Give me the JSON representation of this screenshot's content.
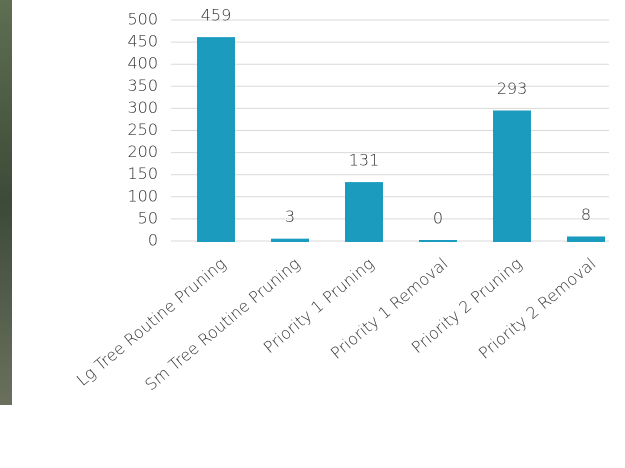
{
  "chart_data": {
    "type": "bar",
    "categories": [
      "Lg Tree Routine Pruning",
      "Sm Tree Routine Pruning",
      "Priority 1 Pruning",
      "Priority 1 Removal",
      "Priority 2 Pruning",
      "Priority 2 Removal"
    ],
    "values": [
      459,
      3,
      131,
      0,
      293,
      8
    ],
    "color": "#1b9bbe",
    "ylim": [
      0,
      500
    ],
    "yticks": [
      0,
      50,
      100,
      150,
      200,
      250,
      300,
      350,
      400,
      450,
      500
    ],
    "grid": true
  }
}
